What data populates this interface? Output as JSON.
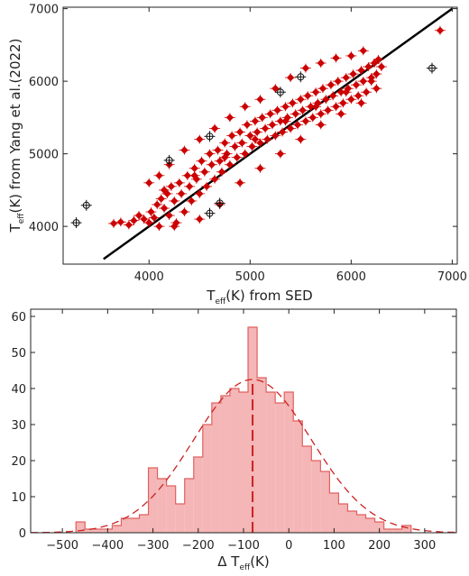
{
  "chart_data": [
    {
      "type": "scatter",
      "xlabel": {
        "main": "T",
        "sub": "eff",
        "rest": "(K) from SED"
      },
      "ylabel": {
        "main": "T",
        "sub": "eff",
        "rest": "(K) from Yang et al.(2022)"
      },
      "xlim": [
        3150,
        7050
      ],
      "ylim": [
        3480,
        7020
      ],
      "xticks": [
        4000,
        5000,
        6000,
        7000
      ],
      "yticks": [
        4000,
        5000,
        6000,
        7000
      ],
      "grid": false,
      "reference_line": {
        "label": "",
        "from": [
          3550,
          3550
        ],
        "to": [
          7000,
          7000
        ],
        "color": "#000000"
      },
      "series": [
        {
          "color": "#cc0000",
          "marker": "diamond",
          "points": [
            [
              3650,
              4040
            ],
            [
              3720,
              4060
            ],
            [
              3800,
              4020
            ],
            [
              3850,
              4080
            ],
            [
              3900,
              4150
            ],
            [
              3950,
              4100
            ],
            [
              4000,
              4050
            ],
            [
              4020,
              4200
            ],
            [
              4050,
              4120
            ],
            [
              4080,
              4300
            ],
            [
              4100,
              4000
            ],
            [
              4120,
              4380
            ],
            [
              4150,
              4250
            ],
            [
              4180,
              4450
            ],
            [
              4200,
              4150
            ],
            [
              4220,
              4550
            ],
            [
              4250,
              4350
            ],
            [
              4270,
              4050
            ],
            [
              4300,
              4600
            ],
            [
              4320,
              4450
            ],
            [
              4350,
              4200
            ],
            [
              4380,
              4700
            ],
            [
              4400,
              4550
            ],
            [
              4420,
              4350
            ],
            [
              4450,
              4800
            ],
            [
              4470,
              4650
            ],
            [
              4500,
              4450
            ],
            [
              4520,
              4900
            ],
            [
              4550,
              4750
            ],
            [
              4570,
              4550
            ],
            [
              4600,
              5000
            ],
            [
              4620,
              4850
            ],
            [
              4650,
              4650
            ],
            [
              4680,
              5050
            ],
            [
              4700,
              4900
            ],
            [
              4720,
              4750
            ],
            [
              4750,
              5150
            ],
            [
              4770,
              5000
            ],
            [
              4800,
              4850
            ],
            [
              4820,
              5250
            ],
            [
              4850,
              5100
            ],
            [
              4870,
              4950
            ],
            [
              4900,
              5300
            ],
            [
              4920,
              5150
            ],
            [
              4950,
              5000
            ],
            [
              4970,
              5400
            ],
            [
              5000,
              5250
            ],
            [
              5020,
              5100
            ],
            [
              5050,
              5450
            ],
            [
              5070,
              5300
            ],
            [
              5100,
              5150
            ],
            [
              5120,
              5500
            ],
            [
              5150,
              5350
            ],
            [
              5170,
              5200
            ],
            [
              5200,
              5550
            ],
            [
              5220,
              5400
            ],
            [
              5250,
              5250
            ],
            [
              5270,
              5600
            ],
            [
              5300,
              5450
            ],
            [
              5320,
              5300
            ],
            [
              5350,
              5650
            ],
            [
              5370,
              5500
            ],
            [
              5400,
              5350
            ],
            [
              5420,
              5700
            ],
            [
              5450,
              5550
            ],
            [
              5470,
              5400
            ],
            [
              5500,
              5750
            ],
            [
              5520,
              5600
            ],
            [
              5550,
              5450
            ],
            [
              5570,
              5800
            ],
            [
              5600,
              5650
            ],
            [
              5620,
              5500
            ],
            [
              5650,
              5850
            ],
            [
              5670,
              5700
            ],
            [
              5700,
              5550
            ],
            [
              5720,
              5900
            ],
            [
              5750,
              5750
            ],
            [
              5770,
              5600
            ],
            [
              5800,
              5950
            ],
            [
              5820,
              5800
            ],
            [
              5850,
              5650
            ],
            [
              5870,
              6000
            ],
            [
              5900,
              5850
            ],
            [
              5920,
              5700
            ],
            [
              5950,
              6050
            ],
            [
              5970,
              5900
            ],
            [
              6000,
              5750
            ],
            [
              6020,
              6100
            ],
            [
              6050,
              5950
            ],
            [
              6070,
              5800
            ],
            [
              6100,
              6150
            ],
            [
              6120,
              6000
            ],
            [
              6150,
              5850
            ],
            [
              6170,
              6200
            ],
            [
              6200,
              6050
            ],
            [
              6230,
              6250
            ],
            [
              6250,
              6100
            ],
            [
              6270,
              6300
            ],
            [
              6300,
              6200
            ],
            [
              6120,
              6420
            ],
            [
              6000,
              6350
            ],
            [
              5850,
              6320
            ],
            [
              5700,
              6250
            ],
            [
              5550,
              6180
            ],
            [
              5400,
              6050
            ],
            [
              5250,
              5900
            ],
            [
              5100,
              5750
            ],
            [
              4950,
              5650
            ],
            [
              4800,
              5500
            ],
            [
              4650,
              5350
            ],
            [
              4500,
              5200
            ],
            [
              4350,
              5050
            ],
            [
              4200,
              4850
            ],
            [
              4100,
              4700
            ],
            [
              4000,
              4600
            ],
            [
              4250,
              4000
            ],
            [
              4500,
              4100
            ],
            [
              4700,
              4300
            ],
            [
              4900,
              4600
            ],
            [
              5100,
              4800
            ],
            [
              5300,
              5000
            ],
            [
              5500,
              5200
            ],
            [
              5700,
              5400
            ],
            [
              5900,
              5550
            ],
            [
              6100,
              5700
            ],
            [
              6250,
              5900
            ],
            [
              4150,
              4500
            ],
            [
              4450,
              4700
            ],
            [
              4750,
              4950
            ],
            [
              5050,
              5200
            ],
            [
              5350,
              5450
            ],
            [
              5650,
              5650
            ],
            [
              5950,
              5850
            ],
            [
              6200,
              6000
            ],
            [
              6880,
              6700
            ]
          ]
        },
        {
          "color": "#111111",
          "marker": "open-circle-cross",
          "points": [
            [
              3280,
              4050
            ],
            [
              3380,
              4290
            ],
            [
              4200,
              4910
            ],
            [
              4600,
              5240
            ],
            [
              4600,
              4180
            ],
            [
              4700,
              4320
            ],
            [
              5300,
              5850
            ],
            [
              5500,
              6060
            ],
            [
              6800,
              6180
            ]
          ]
        }
      ]
    },
    {
      "type": "histogram",
      "xlabel": {
        "main": "Δ T",
        "sub": "eff",
        "rest": "(K)"
      },
      "ylabel": "",
      "xlim": [
        -570,
        370
      ],
      "ylim": [
        0,
        62
      ],
      "xticks": [
        -500,
        -400,
        -300,
        -200,
        -100,
        0,
        100,
        200,
        300
      ],
      "yticks": [
        0,
        10,
        20,
        30,
        40,
        50,
        60
      ],
      "grid": false,
      "bin_edges": [
        -470,
        -450,
        -430,
        -410,
        -390,
        -370,
        -350,
        -330,
        -310,
        -290,
        -270,
        -250,
        -230,
        -210,
        -190,
        -170,
        -150,
        -130,
        -110,
        -90,
        -70,
        -50,
        -30,
        -10,
        10,
        30,
        50,
        70,
        90,
        110,
        130,
        150,
        170,
        190,
        210,
        230,
        250,
        270
      ],
      "counts": [
        3,
        1,
        1,
        1,
        2,
        4,
        4,
        5,
        18,
        15,
        13,
        8,
        15,
        21,
        30,
        36,
        38,
        40,
        39,
        57,
        43,
        39,
        36,
        39,
        31,
        24,
        20,
        17,
        11,
        8,
        6,
        5,
        4,
        3,
        1,
        1,
        2
      ],
      "fit_curve": {
        "type": "gaussian",
        "mean": -80,
        "sigma": 130,
        "peak": 42.5,
        "color": "#cc2222"
      },
      "mean_line": {
        "x": -80,
        "color": "#cc2222"
      },
      "fill_color": "#f4b6b6",
      "edge_color": "#e06060"
    }
  ]
}
